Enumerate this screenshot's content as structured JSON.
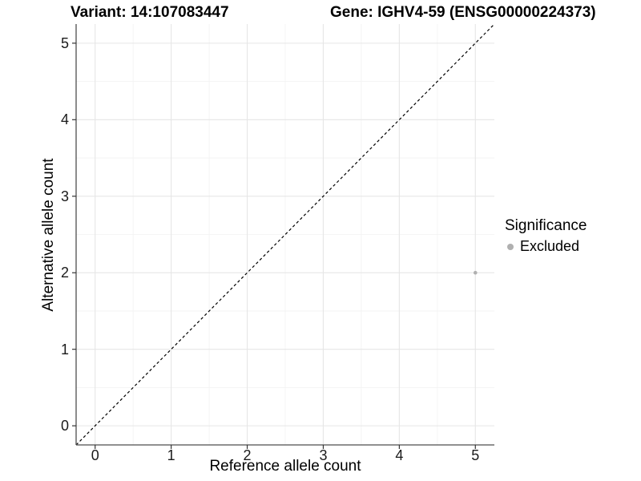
{
  "chart_data": {
    "type": "scatter",
    "titles": {
      "left": "Variant: 14:107083447",
      "right": "Gene: IGHV4-59 (ENSG00000224373)"
    },
    "xlabel": "Reference allele count",
    "ylabel": "Alternative allele count",
    "xlim": [
      -0.25,
      5.25
    ],
    "ylim": [
      -0.25,
      5.25
    ],
    "x_ticks": [
      0,
      1,
      2,
      3,
      4,
      5
    ],
    "y_ticks": [
      0,
      1,
      2,
      3,
      4,
      5
    ],
    "grid": {
      "major": true,
      "minor": true,
      "major_color": "#e6e6e6",
      "minor_color": "#f2f2f2"
    },
    "reference_line": {
      "style": "dashed",
      "slope": 1,
      "intercept": 0,
      "color": "#000000"
    },
    "series": [
      {
        "name": "Excluded",
        "color": "#b0b0b0",
        "point_radius": 2.3,
        "points": [
          {
            "x": 5,
            "y": 2
          }
        ]
      }
    ],
    "legend": {
      "title": "Significance",
      "position": "right",
      "items": [
        {
          "label": "Excluded",
          "color": "#b0b0b0"
        }
      ]
    },
    "axis": {
      "line_color": "#4d4d4d",
      "tick_color": "#333333",
      "text_color": "#1a1a1a"
    }
  }
}
